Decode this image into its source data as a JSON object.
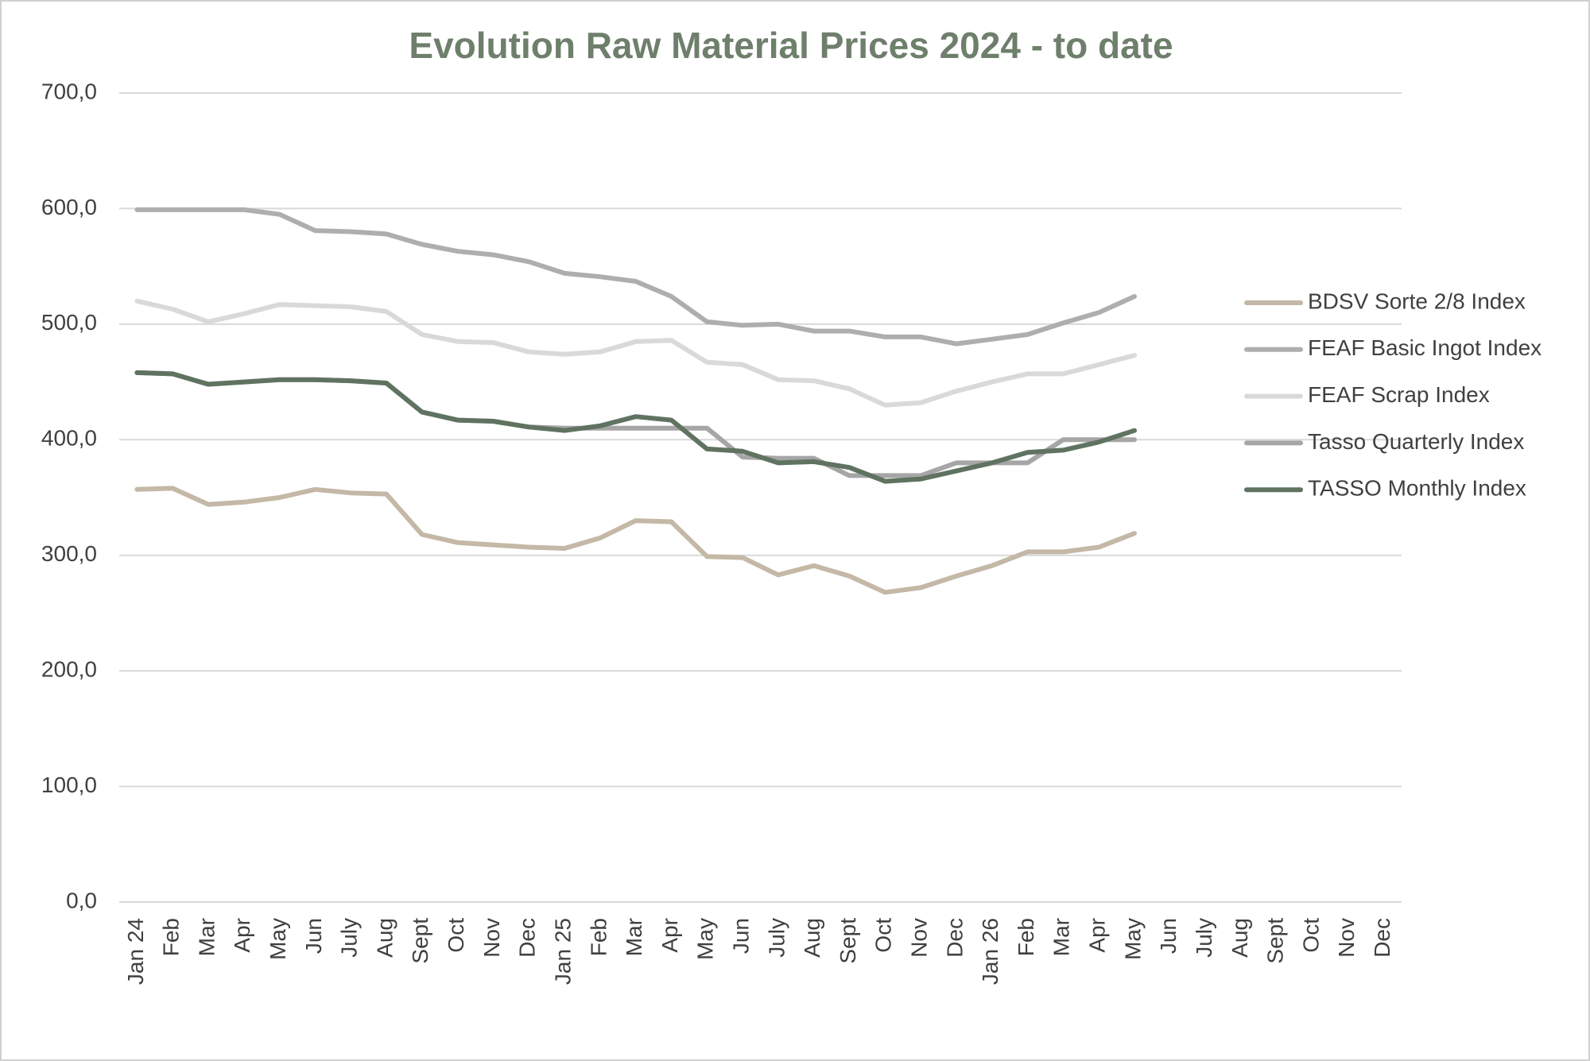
{
  "chart_data": {
    "type": "line",
    "title": "Evolution Raw Material Prices 2024 - to date",
    "categories": [
      "Jan 24",
      "Feb",
      "Mar",
      "Apr",
      "May",
      "Jun",
      "July",
      "Aug",
      "Sept",
      "Oct",
      "Nov",
      "Dec",
      "Jan 25",
      "Feb",
      "Mar",
      "Apr",
      "May",
      "Jun",
      "July",
      "Aug",
      "Sept",
      "Oct",
      "Nov",
      "Dec",
      "Jan 26",
      "Feb",
      "Mar",
      "Apr",
      "May",
      "Jun",
      "July",
      "Aug",
      "Sept",
      "Oct",
      "Nov",
      "Dec"
    ],
    "series": [
      {
        "name": "BDSV Sorte 2/8 Index",
        "color": "#c4b8a6",
        "values": [
          357,
          358,
          344,
          346,
          350,
          357,
          354,
          353,
          318,
          311,
          309,
          307,
          306,
          315,
          330,
          329,
          299,
          298,
          283,
          291,
          282,
          268,
          272,
          282,
          291,
          303,
          303,
          307,
          319,
          null,
          null,
          null,
          null,
          null,
          null,
          null
        ]
      },
      {
        "name": "FEAF Basic Ingot Index",
        "color": "#aeaeae",
        "values": [
          599,
          599,
          599,
          599,
          595,
          581,
          580,
          578,
          569,
          563,
          560,
          554,
          544,
          541,
          537,
          524,
          502,
          499,
          500,
          494,
          494,
          489,
          489,
          483,
          487,
          491,
          501,
          510,
          524,
          null,
          null,
          null,
          null,
          null,
          null,
          null
        ]
      },
      {
        "name": "FEAF Scrap Index",
        "color": "#d9d9d9",
        "values": [
          520,
          513,
          502,
          509,
          517,
          516,
          515,
          511,
          491,
          485,
          484,
          476,
          474,
          476,
          485,
          486,
          467,
          465,
          452,
          451,
          444,
          430,
          432,
          442,
          450,
          457,
          457,
          465,
          473,
          null,
          null,
          null,
          null,
          null,
          null,
          null
        ]
      },
      {
        "name": "Tasso Quarterly Index",
        "color": "#a6a6a6",
        "values": [
          458,
          457,
          448,
          450,
          452,
          452,
          451,
          449,
          424,
          417,
          416,
          411,
          410,
          410,
          410,
          410,
          410,
          385,
          384,
          384,
          369,
          369,
          369,
          380,
          380,
          380,
          400,
          400,
          400,
          null,
          null,
          null,
          null,
          null,
          null,
          null
        ]
      },
      {
        "name": "TASSO Monthly Index",
        "color": "#5f7360",
        "values": [
          458,
          457,
          448,
          450,
          452,
          452,
          451,
          449,
          424,
          417,
          416,
          411,
          408,
          412,
          420,
          417,
          392,
          390,
          380,
          381,
          376,
          364,
          366,
          373,
          380,
          389,
          391,
          398,
          408,
          null,
          null,
          null,
          null,
          null,
          null,
          null
        ]
      }
    ],
    "ylim": [
      0,
      700
    ],
    "yticks": [
      {
        "value": 0,
        "label": "0,0"
      },
      {
        "value": 100,
        "label": "100,0"
      },
      {
        "value": 200,
        "label": "200,0"
      },
      {
        "value": 300,
        "label": "300,0"
      },
      {
        "value": 400,
        "label": "400,0"
      },
      {
        "value": 500,
        "label": "500,0"
      },
      {
        "value": 600,
        "label": "600,0"
      },
      {
        "value": 700,
        "label": "700,0"
      }
    ],
    "grid": true,
    "legend": "right"
  }
}
